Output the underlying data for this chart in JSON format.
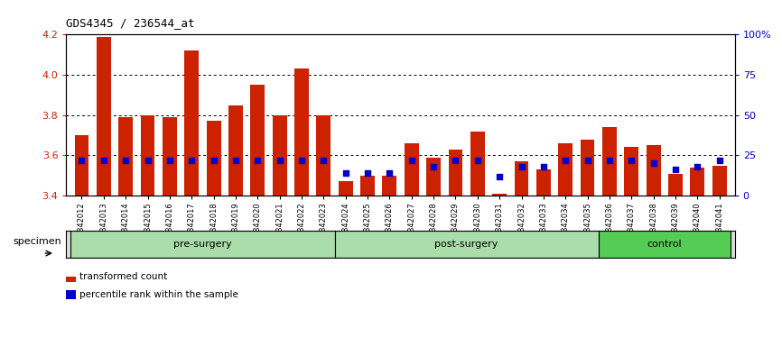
{
  "title": "GDS4345 / 236544_at",
  "ylim_left": [
    3.4,
    4.2
  ],
  "ylim_right": [
    0,
    100
  ],
  "yticks_left": [
    3.4,
    3.6,
    3.8,
    4.0,
    4.2
  ],
  "yticks_right": [
    0,
    25,
    50,
    75,
    100
  ],
  "ytick_labels_right": [
    "0",
    "25",
    "50",
    "75",
    "100%"
  ],
  "categories": [
    "GSM842012",
    "GSM842013",
    "GSM842014",
    "GSM842015",
    "GSM842016",
    "GSM842017",
    "GSM842018",
    "GSM842019",
    "GSM842020",
    "GSM842021",
    "GSM842022",
    "GSM842023",
    "GSM842024",
    "GSM842025",
    "GSM842026",
    "GSM842027",
    "GSM842028",
    "GSM842029",
    "GSM842030",
    "GSM842031",
    "GSM842032",
    "GSM842033",
    "GSM842034",
    "GSM842035",
    "GSM842036",
    "GSM842037",
    "GSM842038",
    "GSM842039",
    "GSM842040",
    "GSM842041"
  ],
  "red_values": [
    3.7,
    4.19,
    3.79,
    3.8,
    3.79,
    4.12,
    3.77,
    3.85,
    3.95,
    3.8,
    4.03,
    3.8,
    3.47,
    3.5,
    3.5,
    3.66,
    3.59,
    3.63,
    3.72,
    3.41,
    3.57,
    3.53,
    3.66,
    3.68,
    3.74,
    3.64,
    3.65,
    3.51,
    3.54,
    3.55
  ],
  "blue_values": [
    22,
    22,
    22,
    22,
    22,
    22,
    22,
    22,
    22,
    22,
    22,
    22,
    14,
    14,
    14,
    22,
    18,
    22,
    22,
    12,
    18,
    18,
    22,
    22,
    22,
    22,
    20,
    16,
    18,
    22
  ],
  "group_ranges": [
    {
      "start": 0,
      "end": 11,
      "label": "pre-surgery",
      "color": "#aaddaa"
    },
    {
      "start": 12,
      "end": 23,
      "label": "post-surgery",
      "color": "#aaddaa"
    },
    {
      "start": 24,
      "end": 29,
      "label": "control",
      "color": "#55cc55"
    }
  ],
  "base": 3.4,
  "bar_color": "#CC2200",
  "dot_color": "#0000CC",
  "tick_label_color_left": "#CC2200",
  "tick_label_color_right": "#0000CC",
  "legend_items": [
    {
      "label": "transformed count",
      "color": "#CC2200"
    },
    {
      "label": "percentile rank within the sample",
      "color": "#0000CC"
    }
  ],
  "bar_width": 0.65
}
